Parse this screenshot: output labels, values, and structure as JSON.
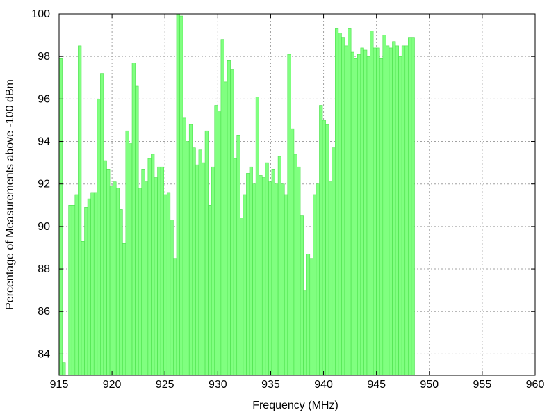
{
  "chart_data": {
    "type": "bar",
    "title": "",
    "xlabel": "Frequency (MHz)",
    "ylabel": "Percentage of Measurements above -100 dBm",
    "xlim": [
      915,
      960
    ],
    "ylim": [
      83,
      100
    ],
    "bin_width": 0.3,
    "x_ticks": [
      915,
      920,
      925,
      930,
      935,
      940,
      945,
      950,
      955,
      960
    ],
    "y_ticks": [
      84,
      86,
      88,
      90,
      92,
      94,
      96,
      98,
      100
    ],
    "grid": true,
    "bar_color": "#80ff80",
    "bar_edge_color": "#49e049",
    "values": [
      97.9,
      83.6,
      83.0,
      91.0,
      91.0,
      91.5,
      98.5,
      89.3,
      90.9,
      91.3,
      91.6,
      91.6,
      96.0,
      97.2,
      93.1,
      92.7,
      91.9,
      92.1,
      91.8,
      90.8,
      89.2,
      94.5,
      93.9,
      97.7,
      96.6,
      91.8,
      92.7,
      92.1,
      93.2,
      93.4,
      92.3,
      92.8,
      92.8,
      91.5,
      91.6,
      90.3,
      88.5,
      100.0,
      99.9,
      95.1,
      94.0,
      94.8,
      93.7,
      92.9,
      93.6,
      93.0,
      94.5,
      91.0,
      92.8,
      95.7,
      95.4,
      98.8,
      96.8,
      97.8,
      97.4,
      93.2,
      94.3,
      90.4,
      91.5,
      92.5,
      92.8,
      92.0,
      96.1,
      92.4,
      92.3,
      93.0,
      92.1,
      92.7,
      92.0,
      93.3,
      92.0,
      91.5,
      98.1,
      94.6,
      93.4,
      92.8,
      90.5,
      87.0,
      88.7,
      88.5,
      91.5,
      92.0,
      95.7,
      95.0,
      94.8,
      92.1,
      93.7,
      99.3,
      99.1,
      98.9,
      98.5,
      99.3,
      98.2,
      97.9,
      98.1,
      98.4,
      98.3,
      98.0,
      99.2,
      98.4,
      98.4,
      97.9,
      99.0,
      98.5,
      98.4,
      98.7,
      98.5,
      98.0,
      98.5,
      98.5,
      98.9,
      98.9
    ]
  }
}
